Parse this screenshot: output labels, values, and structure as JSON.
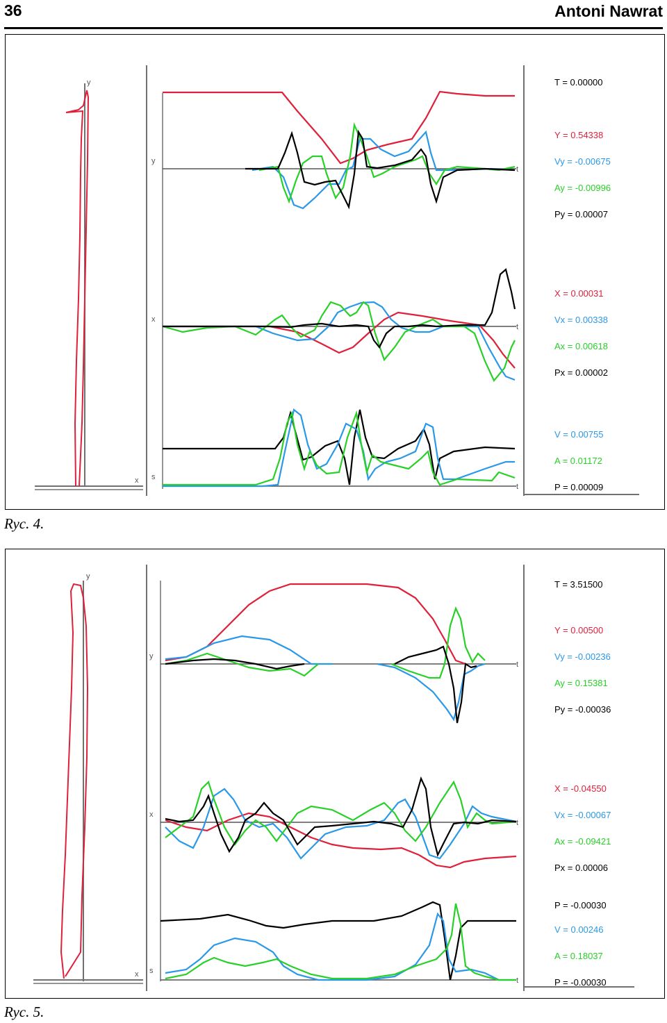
{
  "header": {
    "page_number": "36",
    "author": "Antoni Nawrat"
  },
  "colors": {
    "red": "#e0203a",
    "blue": "#2a98e8",
    "green": "#28d028",
    "black": "#000000",
    "axis": "#707070"
  },
  "axis_labels": {
    "y": "y",
    "x": "x",
    "s": "s",
    "t": "t"
  },
  "figures": [
    {
      "caption": "Ryc. 4.",
      "time": "T = 0.00000",
      "y_group": [
        "Y = 0.54338",
        "Vy = -0.00675",
        "Ay = -0.00996",
        "Py = 0.00007"
      ],
      "x_group": [
        "X = 0.00031",
        "Vx = 0.00338",
        "Ax = 0.00618",
        "Px = 0.00002"
      ],
      "s_group": [
        "V = 0.00755",
        "A = 0.01172",
        "P = 0.00009"
      ]
    },
    {
      "caption": "Ryc. 5.",
      "time": "T = 3.51500",
      "y_group": [
        "Y = 0.00500",
        "Vy = -0.00236",
        "Ay = 0.15381",
        "Py = -0.00036"
      ],
      "x_group": [
        "X = -0.04550",
        "Vx = -0.00067",
        "Ax = -0.09421",
        "Px = 0.00006"
      ],
      "s_group": [
        "P = -0.00030",
        "V = 0.00246",
        "A = 0.18037",
        "P = -0.00030"
      ]
    }
  ]
}
